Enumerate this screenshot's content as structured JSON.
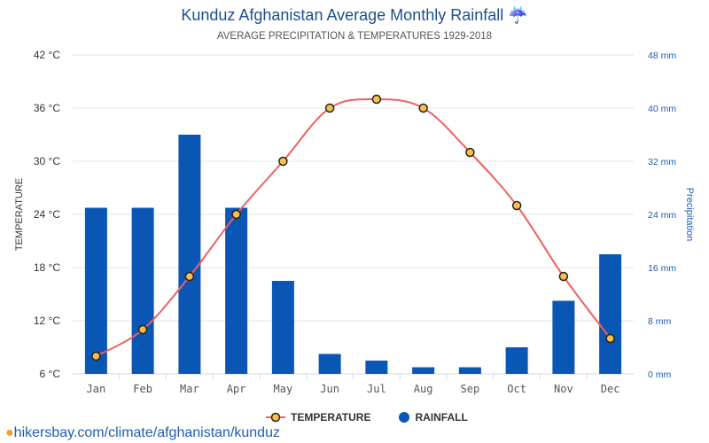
{
  "title": "Kunduz Afghanistan Average Monthly Rainfall ☔",
  "subtitle": "AVERAGE PRECIPITATION & TEMPERATURES 1929-2018",
  "link": "hikersbay.com/climate/afghanistan/kunduz",
  "chart_data": {
    "type": "bar+line",
    "categories": [
      "Jan",
      "Feb",
      "Mar",
      "Apr",
      "May",
      "Jun",
      "Jul",
      "Aug",
      "Sep",
      "Oct",
      "Nov",
      "Dec"
    ],
    "series": [
      {
        "name": "TEMPERATURE",
        "type": "line",
        "axis": "left",
        "color": "#f06060",
        "values": [
          8,
          11,
          17,
          24,
          30,
          36,
          37,
          36,
          31,
          25,
          17,
          10
        ]
      },
      {
        "name": "RAINFALL",
        "type": "bar",
        "axis": "right",
        "color": "#0a56b5",
        "values": [
          25,
          25,
          36,
          25,
          14,
          3,
          2,
          1,
          1,
          4,
          11,
          18
        ]
      }
    ],
    "ylabel": "TEMPERATURE",
    "y2label": "Precipitation",
    "ylim": [
      6,
      42
    ],
    "y2lim": [
      0,
      48
    ],
    "yticks": [
      "6 °C",
      "12 °C",
      "18 °C",
      "24 °C",
      "30 °C",
      "36 °C",
      "42 °C"
    ],
    "y2ticks": [
      "0 mm",
      "8 mm",
      "16 mm",
      "24 mm",
      "32 mm",
      "40 mm",
      "48 mm"
    ],
    "legend": "bottom"
  }
}
